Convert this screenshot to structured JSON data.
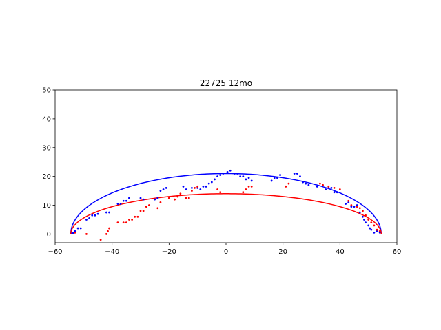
{
  "chart_data": {
    "type": "scatter",
    "title": "22725 12mo",
    "xlabel": "",
    "ylabel": "",
    "xlim": [
      -60,
      60
    ],
    "ylim": [
      -3,
      50
    ],
    "xticks": [
      -60,
      -40,
      -20,
      0,
      20,
      40,
      60
    ],
    "yticks": [
      0,
      10,
      20,
      30,
      40,
      50
    ],
    "grid": false,
    "series": [
      {
        "kind": "curve",
        "color": "#0000ff",
        "center_x": 0,
        "half_width": 54.5,
        "peak_y": 21
      },
      {
        "kind": "curve",
        "color": "#ff0000",
        "center_x": 0,
        "half_width": 54.5,
        "peak_y": 14
      },
      {
        "kind": "points",
        "color": "#0000ff",
        "points": [
          [
            -54,
            0.3
          ],
          [
            -53.5,
            0.3
          ],
          [
            -53,
            1
          ],
          [
            -52,
            2
          ],
          [
            -51,
            2
          ],
          [
            -49,
            5
          ],
          [
            -48,
            5.5
          ],
          [
            -47,
            6.5
          ],
          [
            -46,
            6.5
          ],
          [
            -45,
            7
          ],
          [
            -42,
            7.5
          ],
          [
            -41,
            7.5
          ],
          [
            -38,
            10.5
          ],
          [
            -37,
            10.5
          ],
          [
            -36,
            11.5
          ],
          [
            -35,
            11.5
          ],
          [
            -34,
            12.5
          ],
          [
            -30,
            12.5
          ],
          [
            -29,
            12
          ],
          [
            -25,
            12
          ],
          [
            -24,
            12.5
          ],
          [
            -23,
            15
          ],
          [
            -22,
            15.5
          ],
          [
            -21,
            16
          ],
          [
            -15,
            16.5
          ],
          [
            -14,
            15.5
          ],
          [
            -12,
            16
          ],
          [
            -10,
            16
          ],
          [
            -9,
            15.5
          ],
          [
            -8,
            16.5
          ],
          [
            -7,
            16.5
          ],
          [
            -6,
            17.5
          ],
          [
            -5,
            18
          ],
          [
            -4,
            19
          ],
          [
            -3,
            20
          ],
          [
            -2,
            20.5
          ],
          [
            -1,
            21
          ],
          [
            0.5,
            21.5
          ],
          [
            1.5,
            22
          ],
          [
            3,
            21
          ],
          [
            4,
            21
          ],
          [
            5,
            20
          ],
          [
            6,
            20
          ],
          [
            7,
            19
          ],
          [
            8,
            19.5
          ],
          [
            9,
            18.5
          ],
          [
            16,
            18.5
          ],
          [
            17,
            19.5
          ],
          [
            18,
            19.5
          ],
          [
            19,
            20.5
          ],
          [
            24,
            21
          ],
          [
            25,
            21
          ],
          [
            26,
            20
          ],
          [
            27,
            18
          ],
          [
            28,
            17.5
          ],
          [
            29,
            17
          ],
          [
            32,
            16.5
          ],
          [
            35,
            15.5
          ],
          [
            36,
            16
          ],
          [
            37,
            16
          ],
          [
            38,
            14.5
          ],
          [
            39,
            14.5
          ],
          [
            42,
            10.5
          ],
          [
            43,
            11
          ],
          [
            44,
            9.5
          ],
          [
            45,
            9.5
          ],
          [
            46,
            10
          ],
          [
            47,
            7.5
          ],
          [
            48,
            6
          ],
          [
            48.5,
            5
          ],
          [
            49,
            4
          ],
          [
            50,
            3
          ],
          [
            50.5,
            2
          ],
          [
            51,
            1.5
          ],
          [
            52,
            0.5
          ],
          [
            53,
            1
          ],
          [
            54,
            0.5
          ]
        ]
      },
      {
        "kind": "points",
        "color": "#ff0000",
        "points": [
          [
            -53,
            0.5
          ],
          [
            -49,
            0
          ],
          [
            -44,
            -2
          ],
          [
            -42,
            0
          ],
          [
            -41.5,
            1
          ],
          [
            -41,
            2
          ],
          [
            -38,
            4
          ],
          [
            -36,
            4
          ],
          [
            -35,
            4
          ],
          [
            -34,
            5
          ],
          [
            -33,
            5
          ],
          [
            -32,
            6
          ],
          [
            -31,
            6
          ],
          [
            -30,
            8
          ],
          [
            -29,
            8
          ],
          [
            -28,
            9.5
          ],
          [
            -27,
            10
          ],
          [
            -24,
            9
          ],
          [
            -23,
            11
          ],
          [
            -20,
            12.5
          ],
          [
            -18,
            12
          ],
          [
            -17,
            13
          ],
          [
            -16,
            14
          ],
          [
            -14,
            12.5
          ],
          [
            -13,
            12.5
          ],
          [
            -12,
            15
          ],
          [
            -11,
            16
          ],
          [
            -10,
            16.5
          ],
          [
            -3,
            15.5
          ],
          [
            -2,
            14.5
          ],
          [
            6,
            14.5
          ],
          [
            7,
            15.5
          ],
          [
            8,
            16.5
          ],
          [
            9,
            16.5
          ],
          [
            21,
            16.5
          ],
          [
            22,
            17.5
          ],
          [
            33,
            17.5
          ],
          [
            34,
            17
          ],
          [
            36,
            16.5
          ],
          [
            38,
            16
          ],
          [
            40,
            15.5
          ],
          [
            43,
            11.5
          ],
          [
            44,
            10
          ],
          [
            46,
            9.5
          ],
          [
            47,
            9
          ],
          [
            48,
            8
          ],
          [
            49,
            6.5
          ],
          [
            50,
            5
          ],
          [
            51,
            4
          ],
          [
            52,
            3
          ],
          [
            53,
            1.5
          ],
          [
            54,
            1
          ]
        ]
      }
    ]
  }
}
